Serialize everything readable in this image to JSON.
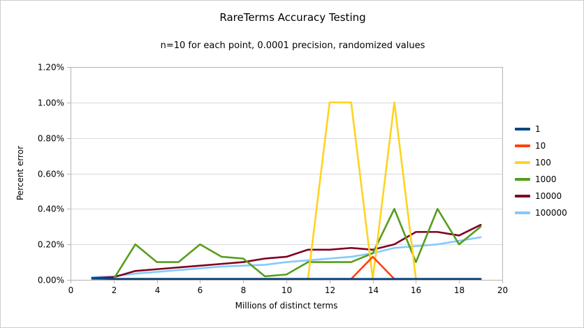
{
  "chart_data": {
    "type": "line",
    "title": "RareTerms Accuracy Testing",
    "subtitle": "n=10 for each point, 0.0001 precision, randomized values",
    "xlabel": "Millions of distinct terms",
    "ylabel": "Percent error",
    "xlim": [
      0,
      20
    ],
    "ylim": [
      0,
      1.2
    ],
    "y_unit": "percent",
    "x_ticks": [
      0,
      2,
      4,
      6,
      8,
      10,
      12,
      14,
      16,
      18,
      20
    ],
    "y_ticks": [
      0,
      0.2,
      0.4,
      0.6,
      0.8,
      1.0,
      1.2
    ],
    "y_tick_labels": [
      "0.00%",
      "0.20%",
      "0.40%",
      "0.60%",
      "0.80%",
      "1.00%",
      "1.20%"
    ],
    "grid": "horizontal",
    "legend_position": "right",
    "x": [
      1,
      2,
      3,
      4,
      5,
      6,
      7,
      8,
      9,
      10,
      11,
      12,
      13,
      14,
      15,
      16,
      17,
      18,
      19
    ],
    "series": [
      {
        "name": "1",
        "color": "#004586",
        "values": [
          0.01,
          0.005,
          0.005,
          0.005,
          0.005,
          0.005,
          0.005,
          0.005,
          0.005,
          0.005,
          0.005,
          0.005,
          0.005,
          0.005,
          0.005,
          0.005,
          0.005,
          0.005,
          0.005
        ]
      },
      {
        "name": "10",
        "color": "#ff420e",
        "values": [
          0.005,
          0.005,
          0.005,
          0.005,
          0.005,
          0.005,
          0.005,
          0.005,
          0.005,
          0.005,
          0.005,
          0.005,
          0.005,
          0.13,
          0.005,
          0.005,
          0.005,
          0.005,
          0.005
        ]
      },
      {
        "name": "100",
        "color": "#ffd320",
        "values": [
          0.005,
          0.005,
          0.005,
          0.005,
          0.005,
          0.005,
          0.005,
          0.005,
          0.005,
          0.005,
          0.005,
          1.0,
          1.0,
          0.005,
          1.0,
          0.005,
          0.005,
          0.005,
          0.005
        ]
      },
      {
        "name": "1000",
        "color": "#579d1c",
        "values": [
          0.01,
          0.005,
          0.2,
          0.1,
          0.1,
          0.2,
          0.13,
          0.12,
          0.02,
          0.03,
          0.1,
          0.1,
          0.1,
          0.15,
          0.4,
          0.1,
          0.4,
          0.2,
          0.3
        ]
      },
      {
        "name": "10000",
        "color": "#7e0021",
        "values": [
          0.01,
          0.015,
          0.05,
          0.06,
          0.07,
          0.08,
          0.09,
          0.1,
          0.12,
          0.13,
          0.17,
          0.17,
          0.18,
          0.17,
          0.2,
          0.27,
          0.27,
          0.25,
          0.31
        ]
      },
      {
        "name": "100000",
        "color": "#83caff",
        "values": [
          0.015,
          0.02,
          0.035,
          0.045,
          0.055,
          0.065,
          0.075,
          0.08,
          0.085,
          0.1,
          0.11,
          0.12,
          0.13,
          0.15,
          0.18,
          0.19,
          0.2,
          0.22,
          0.24
        ]
      }
    ],
    "colors": {
      "grid": "#d9d9d9",
      "axis": "#b3b3b3",
      "background": "#ffffff",
      "frame_border": "#cccccc",
      "text": "#000000"
    }
  }
}
